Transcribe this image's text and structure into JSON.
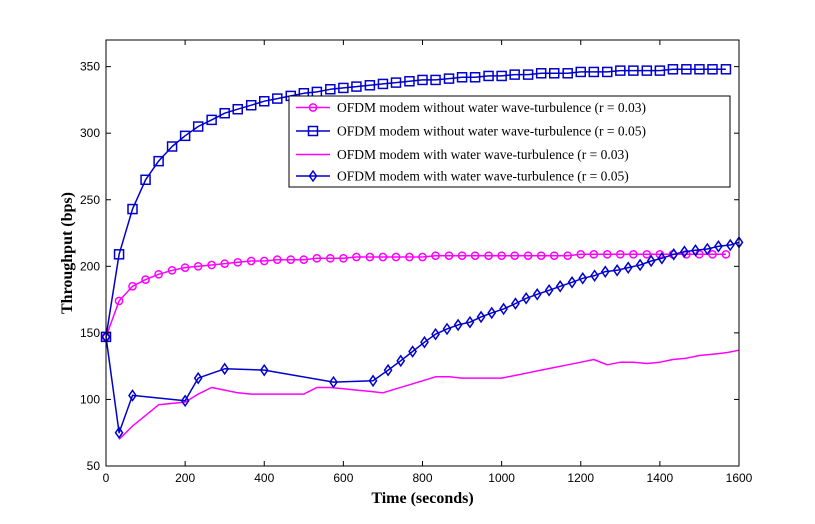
{
  "chart_data": {
    "type": "line",
    "title": "",
    "xlabel": "Time (seconds)",
    "ylabel": "Throughput (bps)",
    "xlim": [
      0,
      1600
    ],
    "ylim": [
      50,
      370
    ],
    "xticks": [
      0,
      200,
      400,
      600,
      800,
      1000,
      1200,
      1400,
      1600
    ],
    "yticks": [
      50,
      100,
      150,
      200,
      250,
      300,
      350
    ],
    "grid": false,
    "legend_position": "upper-right",
    "series": [
      {
        "name": "OFDM modem without water wave-turbulence (r = 0.03)",
        "color": "#ff00ff",
        "marker": "circle",
        "x": [
          0,
          33,
          67,
          100,
          133,
          167,
          200,
          233,
          267,
          300,
          333,
          367,
          400,
          433,
          467,
          500,
          533,
          567,
          600,
          633,
          667,
          700,
          733,
          767,
          800,
          833,
          867,
          900,
          933,
          967,
          1000,
          1033,
          1067,
          1100,
          1133,
          1167,
          1200,
          1233,
          1267,
          1300,
          1333,
          1367,
          1400,
          1433,
          1467,
          1500,
          1533,
          1567
        ],
        "y": [
          147,
          174,
          185,
          190,
          194,
          197,
          199,
          200,
          201,
          202,
          203,
          204,
          204,
          205,
          205,
          205,
          206,
          206,
          206,
          207,
          207,
          207,
          207,
          207,
          207,
          208,
          208,
          208,
          208,
          208,
          208,
          208,
          208,
          208,
          208,
          208,
          209,
          209,
          209,
          209,
          209,
          209,
          209,
          209,
          209,
          209,
          209,
          209
        ]
      },
      {
        "name": "OFDM modem without water wave-turbulence (r = 0.05)",
        "color": "#0000cc",
        "marker": "square",
        "x": [
          0,
          33,
          67,
          100,
          133,
          167,
          200,
          233,
          267,
          300,
          333,
          367,
          400,
          433,
          467,
          500,
          533,
          567,
          600,
          633,
          667,
          700,
          733,
          767,
          800,
          833,
          867,
          900,
          933,
          967,
          1000,
          1033,
          1067,
          1100,
          1133,
          1167,
          1200,
          1233,
          1267,
          1300,
          1333,
          1367,
          1400,
          1433,
          1467,
          1500,
          1533,
          1567
        ],
        "y": [
          147,
          209,
          243,
          265,
          279,
          290,
          298,
          305,
          310,
          315,
          318,
          321,
          324,
          326,
          328,
          330,
          331,
          333,
          334,
          335,
          336,
          337,
          338,
          339,
          340,
          340,
          341,
          342,
          342,
          343,
          343,
          344,
          344,
          345,
          345,
          345,
          346,
          346,
          346,
          347,
          347,
          347,
          347,
          348,
          348,
          348,
          348,
          348
        ]
      },
      {
        "name": "OFDM modem with water wave-turbulence (r = 0.03)",
        "color": "#ff00ff",
        "marker": "none",
        "x": [
          33,
          67,
          100,
          133,
          167,
          200,
          233,
          267,
          300,
          333,
          367,
          400,
          433,
          467,
          500,
          533,
          567,
          600,
          633,
          667,
          700,
          733,
          767,
          800,
          833,
          867,
          900,
          933,
          967,
          1000,
          1033,
          1067,
          1100,
          1133,
          1167,
          1200,
          1233,
          1267,
          1300,
          1333,
          1367,
          1400,
          1433,
          1467,
          1500,
          1533,
          1567,
          1600
        ],
        "y": [
          70,
          80,
          88,
          96,
          97,
          98,
          104,
          109,
          107,
          105,
          104,
          104,
          104,
          104,
          104,
          109,
          109,
          108,
          107,
          106,
          105,
          108,
          111,
          114,
          117,
          117,
          116,
          116,
          116,
          116,
          118,
          120,
          122,
          124,
          126,
          128,
          130,
          126,
          128,
          128,
          127,
          128,
          130,
          131,
          133,
          134,
          135,
          137
        ]
      },
      {
        "name": "OFDM modem with water wave-turbulence (r = 0.05)",
        "color": "#0000cc",
        "marker": "diamond",
        "x": [
          0,
          33,
          67,
          200,
          233,
          300,
          400,
          575,
          675,
          713,
          745,
          775,
          805,
          833,
          862,
          890,
          920,
          948,
          975,
          1005,
          1035,
          1062,
          1090,
          1120,
          1148,
          1178,
          1205,
          1235,
          1262,
          1292,
          1320,
          1350,
          1378,
          1405,
          1435,
          1462,
          1490,
          1520,
          1548,
          1578,
          1600
        ],
        "y": [
          147,
          75,
          103,
          99,
          116,
          123,
          122,
          113,
          114,
          122,
          129,
          136,
          143,
          149,
          153,
          156,
          158,
          162,
          165,
          168,
          172,
          176,
          179,
          182,
          185,
          188,
          191,
          193,
          196,
          197,
          199,
          201,
          204,
          206,
          209,
          211,
          212,
          213,
          215,
          216,
          218
        ]
      }
    ]
  }
}
